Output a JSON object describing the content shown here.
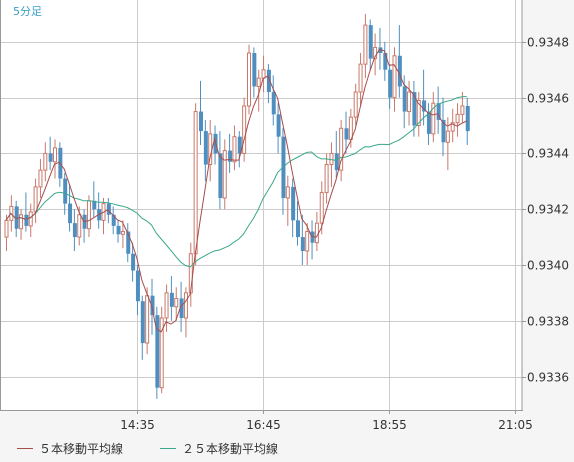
{
  "period_label": "5分足",
  "legend": {
    "ma5": "５本移動平均線",
    "ma25": "２５本移動平均線"
  },
  "colors": {
    "up": "#c9786a",
    "down": "#4f8fc0",
    "ma5": "#a84c4c",
    "ma25": "#3aa88a",
    "grid": "#cccccc",
    "border": "#999999",
    "plot_bg": "#ffffff"
  },
  "chart_data": {
    "type": "candlestick",
    "y_ticks": [
      "0.9336",
      "0.9338",
      "0.9340",
      "0.9342",
      "0.9344",
      "0.9346",
      "0.9348"
    ],
    "x_ticks": [
      {
        "label": "14:35",
        "index": 27
      },
      {
        "label": "16:45",
        "index": 53
      },
      {
        "label": "18:55",
        "index": 79
      },
      {
        "label": "21:05",
        "index": 105
      }
    ],
    "ylim": [
      0.93348,
      0.93495
    ],
    "candles": [
      [
        0.9341,
        0.93418,
        0.93405,
        0.93416
      ],
      [
        0.93416,
        0.93425,
        0.93412,
        0.93421
      ],
      [
        0.93421,
        0.93423,
        0.9341,
        0.93413
      ],
      [
        0.93413,
        0.9342,
        0.93409,
        0.93418
      ],
      [
        0.93418,
        0.93426,
        0.93412,
        0.93414
      ],
      [
        0.93414,
        0.93422,
        0.9341,
        0.93419
      ],
      [
        0.93419,
        0.93431,
        0.93415,
        0.93428
      ],
      [
        0.93428,
        0.93438,
        0.93424,
        0.93434
      ],
      [
        0.93434,
        0.93444,
        0.9343,
        0.9344
      ],
      [
        0.9344,
        0.93446,
        0.93434,
        0.93437
      ],
      [
        0.93437,
        0.93445,
        0.93431,
        0.93442
      ],
      [
        0.93442,
        0.93444,
        0.93428,
        0.93431
      ],
      [
        0.93431,
        0.93433,
        0.93418,
        0.93422
      ],
      [
        0.93422,
        0.93429,
        0.93412,
        0.93415
      ],
      [
        0.93415,
        0.9342,
        0.93405,
        0.9341
      ],
      [
        0.9341,
        0.93421,
        0.93407,
        0.93418
      ],
      [
        0.93418,
        0.9342,
        0.93408,
        0.93413
      ],
      [
        0.93413,
        0.93425,
        0.9341,
        0.93423
      ],
      [
        0.93423,
        0.9343,
        0.93417,
        0.9342
      ],
      [
        0.9342,
        0.93426,
        0.93413,
        0.93416
      ],
      [
        0.93416,
        0.93424,
        0.93411,
        0.93422
      ],
      [
        0.93422,
        0.93424,
        0.93415,
        0.93418
      ],
      [
        0.93418,
        0.93421,
        0.93411,
        0.93414
      ],
      [
        0.93414,
        0.93416,
        0.93408,
        0.93411
      ],
      [
        0.93411,
        0.93416,
        0.93406,
        0.93412
      ],
      [
        0.93412,
        0.93415,
        0.93401,
        0.93404
      ],
      [
        0.93404,
        0.93408,
        0.93394,
        0.93398
      ],
      [
        0.93398,
        0.934,
        0.93382,
        0.93387
      ],
      [
        0.93387,
        0.93389,
        0.93366,
        0.93372
      ],
      [
        0.93372,
        0.93392,
        0.93368,
        0.93389
      ],
      [
        0.93389,
        0.93395,
        0.93375,
        0.93382
      ],
      [
        0.93382,
        0.93385,
        0.93352,
        0.93356
      ],
      [
        0.93356,
        0.93385,
        0.93354,
        0.93381
      ],
      [
        0.93381,
        0.93393,
        0.93376,
        0.9339
      ],
      [
        0.9339,
        0.93396,
        0.9338,
        0.93385
      ],
      [
        0.93385,
        0.93392,
        0.9338,
        0.93388
      ],
      [
        0.93388,
        0.93394,
        0.93376,
        0.93381
      ],
      [
        0.93381,
        0.93392,
        0.93374,
        0.9339
      ],
      [
        0.9339,
        0.93408,
        0.93385,
        0.93404
      ],
      [
        0.93404,
        0.93458,
        0.934,
        0.93455
      ],
      [
        0.93455,
        0.93466,
        0.93443,
        0.93448
      ],
      [
        0.93448,
        0.93452,
        0.9343,
        0.93436
      ],
      [
        0.93436,
        0.93452,
        0.9343,
        0.93447
      ],
      [
        0.93447,
        0.9345,
        0.93436,
        0.9344
      ],
      [
        0.9344,
        0.93448,
        0.9342,
        0.93424
      ],
      [
        0.93424,
        0.93445,
        0.9342,
        0.93441
      ],
      [
        0.93441,
        0.93447,
        0.93433,
        0.93437
      ],
      [
        0.93437,
        0.9345,
        0.93434,
        0.93446
      ],
      [
        0.93446,
        0.93448,
        0.93435,
        0.9344
      ],
      [
        0.9344,
        0.9346,
        0.93437,
        0.93457
      ],
      [
        0.93457,
        0.93479,
        0.93454,
        0.93476
      ],
      [
        0.93476,
        0.93478,
        0.9346,
        0.93464
      ],
      [
        0.93464,
        0.9347,
        0.93455,
        0.93467
      ],
      [
        0.93467,
        0.93475,
        0.93462,
        0.9347
      ],
      [
        0.9347,
        0.93472,
        0.93458,
        0.93462
      ],
      [
        0.93462,
        0.93468,
        0.9345,
        0.93454
      ],
      [
        0.93454,
        0.93458,
        0.9344,
        0.93446
      ],
      [
        0.93446,
        0.93449,
        0.93418,
        0.93424
      ],
      [
        0.93424,
        0.93432,
        0.93414,
        0.93428
      ],
      [
        0.93428,
        0.93431,
        0.9341,
        0.93416
      ],
      [
        0.93416,
        0.93423,
        0.93407,
        0.9341
      ],
      [
        0.9341,
        0.93418,
        0.934,
        0.93405
      ],
      [
        0.93405,
        0.93415,
        0.934,
        0.93412
      ],
      [
        0.93412,
        0.93416,
        0.93402,
        0.93408
      ],
      [
        0.93408,
        0.93419,
        0.93405,
        0.93415
      ],
      [
        0.93415,
        0.9343,
        0.93411,
        0.93426
      ],
      [
        0.93426,
        0.9344,
        0.93422,
        0.93436
      ],
      [
        0.93436,
        0.93444,
        0.93428,
        0.9344
      ],
      [
        0.9344,
        0.93448,
        0.93431,
        0.93434
      ],
      [
        0.93434,
        0.93452,
        0.9343,
        0.93449
      ],
      [
        0.93449,
        0.93455,
        0.9344,
        0.93445
      ],
      [
        0.93445,
        0.93456,
        0.93442,
        0.93453
      ],
      [
        0.93453,
        0.93465,
        0.9345,
        0.93462
      ],
      [
        0.93462,
        0.93476,
        0.93457,
        0.93472
      ],
      [
        0.93472,
        0.9349,
        0.93467,
        0.93486
      ],
      [
        0.93486,
        0.93488,
        0.9347,
        0.93474
      ],
      [
        0.93474,
        0.93483,
        0.93468,
        0.93478
      ],
      [
        0.93478,
        0.93485,
        0.9347,
        0.93476
      ],
      [
        0.93476,
        0.9348,
        0.93466,
        0.9347
      ],
      [
        0.9347,
        0.93472,
        0.93456,
        0.9346
      ],
      [
        0.9346,
        0.93478,
        0.93455,
        0.93475
      ],
      [
        0.93475,
        0.93486,
        0.9346,
        0.93464
      ],
      [
        0.93464,
        0.93468,
        0.93449,
        0.93455
      ],
      [
        0.93455,
        0.93466,
        0.9345,
        0.93462
      ],
      [
        0.93462,
        0.93466,
        0.93446,
        0.9345
      ],
      [
        0.9345,
        0.93462,
        0.93446,
        0.93459
      ],
      [
        0.93459,
        0.9347,
        0.9345,
        0.93455
      ],
      [
        0.93455,
        0.93458,
        0.93443,
        0.93447
      ],
      [
        0.93447,
        0.93462,
        0.93444,
        0.93458
      ],
      [
        0.93458,
        0.93464,
        0.93447,
        0.93452
      ],
      [
        0.93452,
        0.9346,
        0.93439,
        0.93444
      ],
      [
        0.93444,
        0.93453,
        0.93434,
        0.93448
      ],
      [
        0.93448,
        0.93456,
        0.93444,
        0.93451
      ],
      [
        0.93451,
        0.93458,
        0.93446,
        0.93454
      ],
      [
        0.93454,
        0.93462,
        0.93451,
        0.93457
      ],
      [
        0.93457,
        0.9346,
        0.93443,
        0.93448
      ]
    ]
  }
}
